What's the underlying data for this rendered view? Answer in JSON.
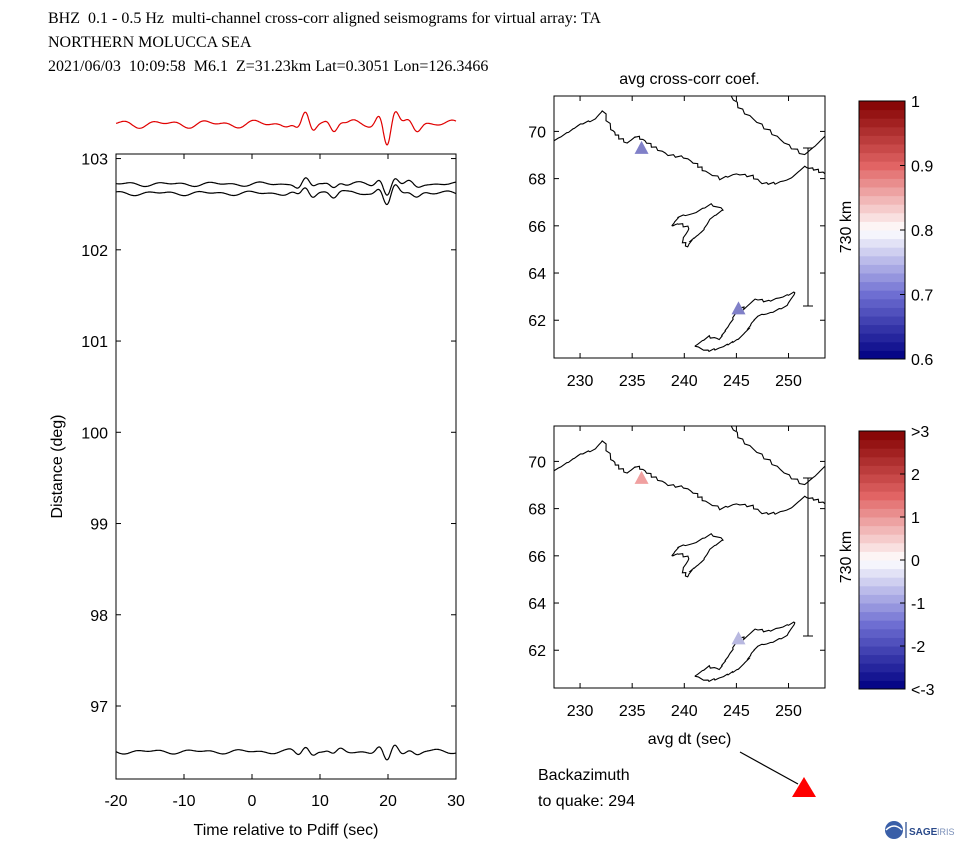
{
  "header": {
    "line1": "BHZ  0.1 - 0.5 Hz  multi-channel cross-corr aligned seismograms for virtual array: TA",
    "line2": "NORTHERN MOLUCCA SEA",
    "line3": "2021/06/03  10:09:58  M6.1  Z=31.23km Lat=0.3051 Lon=126.3466"
  },
  "colors": {
    "stack_trace": "#e00000",
    "trace": "#000000",
    "quake_marker": "#ff0000",
    "coef_station_1": "#8080c8",
    "coef_station_2": "#8080c8",
    "dt_station_1": "#f0a0a0",
    "dt_station_2": "#b8b8e0"
  },
  "chart_data": [
    {
      "type": "line",
      "name": "seismogram-section",
      "xlabel": "Time relative to Pdiff (sec)",
      "ylabel": "Distance (deg)",
      "xlim": [
        -20,
        30
      ],
      "ylim": [
        96.2,
        103.05
      ],
      "x_ticks": [
        "-20",
        "-10",
        "0",
        "10",
        "20",
        "30"
      ],
      "y_ticks": [
        "97",
        "98",
        "99",
        "100",
        "101",
        "102",
        "103"
      ],
      "trace_offsets_deg": [
        102.72,
        102.62,
        96.5
      ],
      "stack_trace_shown": true
    },
    {
      "type": "scatter",
      "name": "map-avg-coef",
      "title": "avg cross-corr coef.",
      "xlim": [
        227.5,
        253.5
      ],
      "ylim": [
        60.4,
        71.5
      ],
      "x_ticks": [
        "230",
        "235",
        "240",
        "245",
        "250"
      ],
      "y_ticks": [
        "62",
        "64",
        "66",
        "68",
        "70"
      ],
      "scale_bar": "730 km",
      "stations": [
        {
          "lon": 235.9,
          "lat": 69.3,
          "value": 0.72
        },
        {
          "lon": 245.2,
          "lat": 62.5,
          "value": 0.72
        }
      ],
      "colorbar": {
        "min": 0.6,
        "max": 1.0,
        "ticks": [
          "1",
          "0.9",
          "0.8",
          "0.7",
          "0.6"
        ]
      }
    },
    {
      "type": "scatter",
      "name": "map-avg-dt",
      "title": "avg dt (sec)",
      "xlim": [
        227.5,
        253.5
      ],
      "ylim": [
        60.4,
        71.5
      ],
      "x_ticks": [
        "230",
        "235",
        "240",
        "245",
        "250"
      ],
      "y_ticks": [
        "62",
        "64",
        "66",
        "68",
        "70"
      ],
      "scale_bar": "730 km",
      "stations": [
        {
          "lon": 235.9,
          "lat": 69.3,
          "value": 0.6
        },
        {
          "lon": 245.2,
          "lat": 62.5,
          "value": -0.6
        }
      ],
      "colorbar": {
        "min": -3,
        "max": 3,
        "ticks": [
          ">3",
          "2",
          "1",
          "0",
          "-1",
          "-2",
          "<-3"
        ]
      }
    }
  ],
  "backazimuth": {
    "label_line1": "Backazimuth",
    "label_line2": "to quake:  294"
  },
  "logo": {
    "text": "SAGE"
  }
}
